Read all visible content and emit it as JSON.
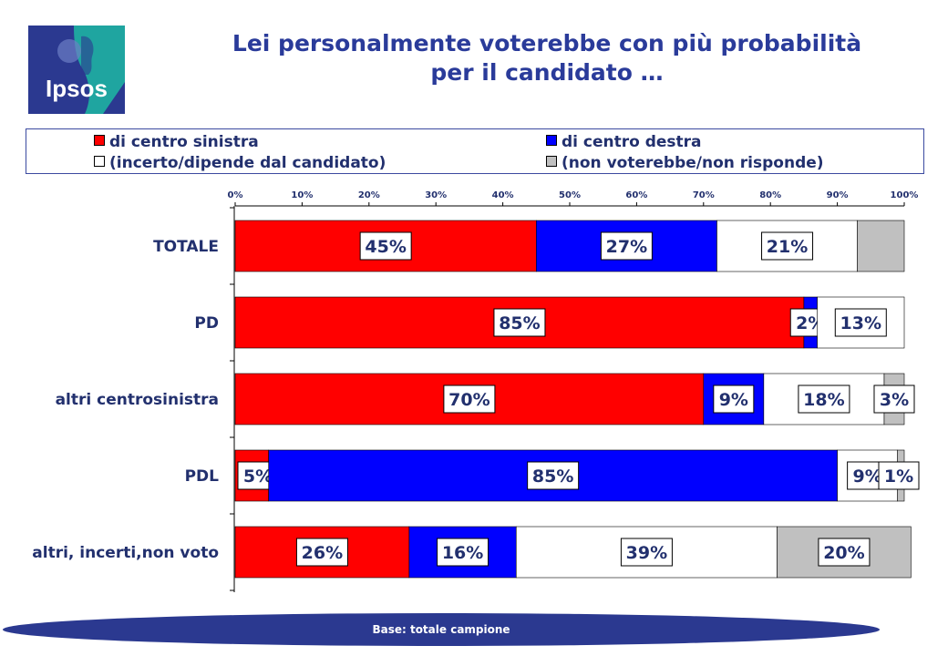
{
  "logo": {
    "text": "Ipsos",
    "colors": {
      "blue": "#2b3990",
      "teal": "#1fa5a0"
    }
  },
  "title": {
    "line1": "Lei personalmente voterebbe con più probabilità",
    "line2": "per il candidato …"
  },
  "legend": {
    "items": [
      {
        "label": "di centro sinistra",
        "color": "#ff0000"
      },
      {
        "label": "di centro destra",
        "color": "#0000ff"
      },
      {
        "label": "(incerto/dipende dal candidato)",
        "color": "#ffffff"
      },
      {
        "label": "(non voterebbe/non risponde)",
        "color": "#c0c0c0"
      }
    ]
  },
  "footer": {
    "text": "Base: totale campione",
    "color": "#2b3990"
  },
  "chart_data": {
    "type": "bar",
    "orientation": "horizontal",
    "stacked": "100%",
    "xlim": [
      0,
      100
    ],
    "ticks": [
      "0%",
      "10%",
      "20%",
      "30%",
      "40%",
      "50%",
      "60%",
      "70%",
      "80%",
      "90%",
      "100%"
    ],
    "categories": [
      "TOTALE",
      "PD",
      "altri centrosinistra",
      "PDL",
      "altri, incerti,non voto"
    ],
    "series": [
      {
        "name": "di centro sinistra",
        "color": "#ff0000",
        "values": [
          45,
          85,
          70,
          5,
          26
        ]
      },
      {
        "name": "di centro destra",
        "color": "#0000ff",
        "values": [
          27,
          2,
          9,
          85,
          16
        ]
      },
      {
        "name": "(incerto/dipende dal candidato)",
        "color": "#ffffff",
        "values": [
          21,
          13,
          18,
          9,
          39
        ]
      },
      {
        "name": "(non voterebbe/non risponde)",
        "color": "#c0c0c0",
        "values": [
          7,
          0,
          3,
          1,
          20
        ]
      }
    ],
    "data_labels": [
      [
        "45%",
        "27%",
        "21%",
        ""
      ],
      [
        "85%",
        "2%",
        "13%",
        ""
      ],
      [
        "70%",
        "9%",
        "18%",
        "3%"
      ],
      [
        "5%",
        "85%",
        "9%",
        "1%"
      ],
      [
        "26%",
        "16%",
        "39%",
        "20%"
      ]
    ],
    "legend_position": "top",
    "grid": false
  }
}
